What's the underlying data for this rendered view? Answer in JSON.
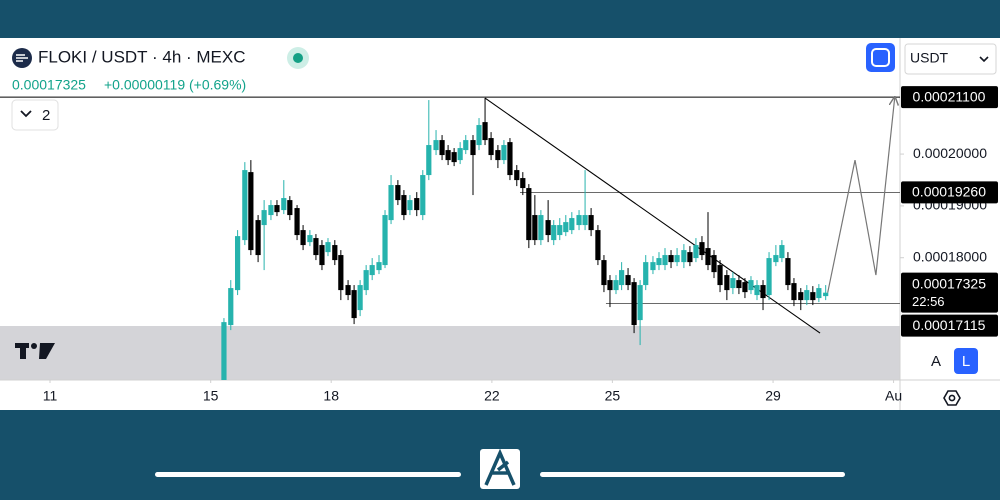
{
  "header": {
    "symbol": "FLOKI / USDT · 4h · MEXC",
    "price": "0.00017325",
    "change": "+0.00000119 (+0.69%)",
    "indicators": "2",
    "currency": "USDT",
    "scale_auto": "A",
    "scale_log": "L"
  },
  "chart_data": {
    "type": "candlestick",
    "up_color": "#26b3ad",
    "down_color": "#000000",
    "xlim": [
      9.755,
      32.16
    ],
    "ylim": [
      0.0001564,
      0.0002224
    ],
    "xticks": [
      11,
      15,
      18,
      22,
      25,
      29,
      {
        "value": 32,
        "label": "Au"
      }
    ],
    "yticks": [
      {
        "value": 0.0002,
        "label": "0.00020000"
      },
      {
        "value": 0.00019,
        "label": "0.00019000"
      },
      {
        "value": 0.00018,
        "label": "0.00018000"
      }
    ],
    "x": [
      15.33,
      15.5,
      15.67,
      15.85,
      16.0,
      16.18,
      16.33,
      16.5,
      16.65,
      16.82,
      16.97,
      17.15,
      17.3,
      17.47,
      17.62,
      17.77,
      17.92,
      18.09,
      18.24,
      18.42,
      18.57,
      18.72,
      18.87,
      19.02,
      19.19,
      19.34,
      19.49,
      19.66,
      19.81,
      19.96,
      20.13,
      20.28,
      20.43,
      20.61,
      20.76,
      20.91,
      21.06,
      21.21,
      21.35,
      21.53,
      21.68,
      21.83,
      21.98,
      22.15,
      22.3,
      22.45,
      22.62,
      22.77,
      22.92,
      23.07,
      23.22,
      23.4,
      23.54,
      23.69,
      23.84,
      23.99,
      24.17,
      24.32,
      24.47,
      24.64,
      24.79,
      24.94,
      25.09,
      25.23,
      25.39,
      25.54,
      25.69,
      25.83,
      26.01,
      26.16,
      26.31,
      26.46,
      26.61,
      26.78,
      26.93,
      27.08,
      27.23,
      27.38,
      27.53,
      27.68,
      27.85,
      28.0,
      28.15,
      28.3,
      28.45,
      28.6,
      28.75,
      28.9,
      29.07,
      29.22,
      29.37,
      29.52,
      29.69,
      29.84,
      29.99,
      30.14,
      30.31
    ],
    "ohlc": [
      [
        0.00015445,
        0.00016835,
        0.00015252,
        0.00016757
      ],
      [
        0.000167,
        0.00017568,
        0.00016603,
        0.00017414
      ],
      [
        0.00017375,
        0.00018533,
        0.00017279,
        0.00018417
      ],
      [
        0.0001834,
        0.00019845,
        0.00018244,
        0.00019691
      ],
      [
        0.00019652,
        0.00019884,
        0.00018051,
        0.00018147
      ],
      [
        0.00018726,
        0.00018823,
        0.00017915,
        0.00018051
      ],
      [
        0.0001863,
        0.00019112,
        0.00017761,
        0.00018919
      ],
      [
        0.00018823,
        0.00019112,
        0.00018726,
        0.00019016
      ],
      [
        0.00019016,
        0.00019112,
        0.00018803,
        0.0001888
      ],
      [
        0.00018919,
        0.00019498,
        0.00018842,
        0.00019151
      ],
      [
        0.00019112,
        0.00019189,
        0.00018726,
        0.00018823
      ],
      [
        0.00018958,
        0.00019016,
        0.0001834,
        0.00018437
      ],
      [
        0.00018533,
        0.0001863,
        0.00018147,
        0.00018244
      ],
      [
        0.00018301,
        0.00018533,
        0.00018224,
        0.00018437
      ],
      [
        0.00018379,
        0.00018456,
        0.00017954,
        0.00018051
      ],
      [
        0.00018244,
        0.0001834,
        0.00017761,
        0.00017858
      ],
      [
        0.00018108,
        0.00018379,
        0.00018031,
        0.00018301
      ],
      [
        0.00018244,
        0.0001834,
        0.00017858,
        0.00017954
      ],
      [
        0.00018051,
        0.00018147,
        0.00017182,
        0.00017375
      ],
      [
        0.00017472,
        0.00017568,
        0.00017182,
        0.00017279
      ],
      [
        0.00017375,
        0.00017472,
        0.00016719,
        0.00016835
      ],
      [
        0.00016989,
        0.00017568,
        0.00016873,
        0.00017472
      ],
      [
        0.00017375,
        0.00017858,
        0.00017279,
        0.00017761
      ],
      [
        0.00017665,
        0.00017993,
        0.00017568,
        0.00017858
      ],
      [
        0.00017761,
        0.00018051,
        0.00017684,
        0.00017915
      ],
      [
        0.00017858,
        0.00018919,
        0.000178,
        0.00018823
      ],
      [
        0.00018726,
        0.00019595,
        0.00018649,
        0.00019402
      ],
      [
        0.00019402,
        0.00019498,
        0.00019016,
        0.00019112
      ],
      [
        0.00019209,
        0.00019305,
        0.00018726,
        0.00018823
      ],
      [
        0.00018919,
        0.00019209,
        0.00018823,
        0.00019112
      ],
      [
        0.00019151,
        0.00019266,
        0.00018803,
        0.00018919
      ],
      [
        0.00018823,
        0.00019691,
        0.00018726,
        0.00019595
      ],
      [
        0.00019595,
        0.00021042,
        0.00019498,
        0.00020174
      ],
      [
        0.00020077,
        0.00020463,
        0.00019981,
        0.0002027
      ],
      [
        0.0002027,
        0.00020367,
        0.00019884,
        0.00019981
      ],
      [
        0.00020077,
        0.00020174,
        0.00019788,
        0.00019884
      ],
      [
        0.00020038,
        0.00020116,
        0.00019768,
        0.00019845
      ],
      [
        0.00019884,
        0.00020231,
        0.00019807,
        0.00020116
      ],
      [
        0.00020077,
        0.00020367,
        0.0002,
        0.0002027
      ],
      [
        0.0002027,
        0.00020367,
        0.00019209,
        0.00019981
      ],
      [
        0.00020174,
        0.00020695,
        0.00020077,
        0.0002056
      ],
      [
        0.00020617,
        0.00021081,
        0.00020174,
        0.0002027
      ],
      [
        0.00020309,
        0.00020424,
        0.00019884,
        0.00019981
      ],
      [
        0.00020077,
        0.00020174,
        0.0001973,
        0.00019884
      ],
      [
        0.00019884,
        0.0002027,
        0.00019807,
        0.00020174
      ],
      [
        0.00020231,
        0.00020309,
        0.00019498,
        0.00019595
      ],
      [
        0.00019691,
        0.00019788,
        0.00019382,
        0.00019498
      ],
      [
        0.00019537,
        0.00019652,
        0.00019209,
        0.00019344
      ],
      [
        0.00019344,
        0.00019421,
        0.00018186,
        0.0001834
      ],
      [
        0.00018823,
        0.00019209,
        0.00018244,
        0.0001834
      ],
      [
        0.0001834,
        0.00018919,
        0.00018244,
        0.00018823
      ],
      [
        0.00018726,
        0.00019112,
        0.00018301,
        0.00018437
      ],
      [
        0.0001834,
        0.00018726,
        0.00018244,
        0.0001863
      ],
      [
        0.00018437,
        0.00018765,
        0.0001834,
        0.0001863
      ],
      [
        0.00018494,
        0.00018823,
        0.00018417,
        0.00018687
      ],
      [
        0.00018533,
        0.0001888,
        0.00018456,
        0.00018765
      ],
      [
        0.0001863,
        0.00018919,
        0.00018533,
        0.00018823
      ],
      [
        0.0001863,
        0.00019691,
        0.00018533,
        0.00018823
      ],
      [
        0.00018823,
        0.00018958,
        0.00018417,
        0.00018533
      ],
      [
        0.00018533,
        0.0001863,
        0.00017858,
        0.00017954
      ],
      [
        0.00017954,
        0.00018051,
        0.00017336,
        0.00017472
      ],
      [
        0.00017568,
        0.00017665,
        0.00017047,
        0.00017375
      ],
      [
        0.00017375,
        0.00017665,
        0.00017298,
        0.00017568
      ],
      [
        0.00017472,
        0.00017915,
        0.00017375,
        0.00017761
      ],
      [
        0.00017665,
        0.000178,
        0.00017375,
        0.00017472
      ],
      [
        0.00017529,
        0.00017607,
        0.00016545,
        0.000167
      ],
      [
        0.00016796,
        0.00017568,
        0.00016314,
        0.00017472
      ],
      [
        0.00017472,
        0.00018051,
        0.00017375,
        0.00017915
      ],
      [
        0.00017761,
        0.00018031,
        0.00017684,
        0.00017915
      ],
      [
        0.00017858,
        0.00018108,
        0.00017761,
        0.00017993
      ],
      [
        0.00017858,
        0.00018186,
        0.00017761,
        0.00018051
      ],
      [
        0.00018051,
        0.00018147,
        0.000178,
        0.00017915
      ],
      [
        0.00017915,
        0.00018186,
        0.00017838,
        0.00018051
      ],
      [
        0.00017915,
        0.00018263,
        0.000178,
        0.00018147
      ],
      [
        0.00018108,
        0.00018224,
        0.00017838,
        0.00017915
      ],
      [
        0.00017993,
        0.00018379,
        0.00017915,
        0.00018244
      ],
      [
        0.00018301,
        0.00018417,
        0.00017954,
        0.00018051
      ],
      [
        0.00018186,
        0.0001888,
        0.00017761,
        0.00017858
      ],
      [
        0.00018051,
        0.00018147,
        0.00017607,
        0.00017722
      ],
      [
        0.00017858,
        0.00017954,
        0.00017336,
        0.00017472
      ],
      [
        0.00017665,
        0.00017761,
        0.00017182,
        0.00017375
      ],
      [
        0.00017414,
        0.00017722,
        0.00017298,
        0.00017607
      ],
      [
        0.00017568,
        0.00017665,
        0.00017298,
        0.00017414
      ],
      [
        0.00017529,
        0.00017607,
        0.00017221,
        0.00017336
      ],
      [
        0.00017375,
        0.00017645,
        0.00017298,
        0.00017568
      ],
      [
        0.00017279,
        0.00017568,
        0.00017182,
        0.00017472
      ],
      [
        0.00017472,
        0.00017568,
        0.00016989,
        0.00017221
      ],
      [
        0.00017279,
        0.00018108,
        0.00017182,
        0.00017993
      ],
      [
        0.00017915,
        0.00018244,
        0.00017838,
        0.00018051
      ],
      [
        0.00017993,
        0.0001834,
        0.00017915,
        0.00018244
      ],
      [
        0.00017993,
        0.00018108,
        0.00017375,
        0.00017472
      ],
      [
        0.0001751,
        0.00017607,
        0.00017066,
        0.00017182
      ],
      [
        0.00017336,
        0.00017414,
        0.00016989,
        0.00017182
      ],
      [
        0.00017182,
        0.00017472,
        0.00017086,
        0.00017375
      ],
      [
        0.00017336,
        0.00017452,
        0.00017086,
        0.00017182
      ],
      [
        0.00017221,
        0.00017491,
        0.00017143,
        0.00017414
      ],
      [
        0.00017259,
        0.00017472,
        0.00017182,
        0.00017325
      ]
    ],
    "price_lines": [
      {
        "value": 0.000211,
        "label": "0.00021100"
      },
      {
        "value": 0.0001926,
        "label": "0.00019260",
        "from": 22.7
      },
      {
        "value": 0.00017115,
        "label": "0.00017115",
        "from": 24.84
      }
    ],
    "last_price": {
      "value": 0.00017325,
      "label": "0.00017325",
      "countdown": "22:56"
    },
    "trendline": [
      [
        21.83,
        0.00021081
      ],
      [
        30.17,
        0.00016545
      ]
    ],
    "projection": [
      [
        30.36,
        0.00017325
      ],
      [
        31.04,
        0.00019884
      ],
      [
        31.56,
        0.00017665
      ],
      [
        32.03,
        0.000211
      ]
    ]
  }
}
